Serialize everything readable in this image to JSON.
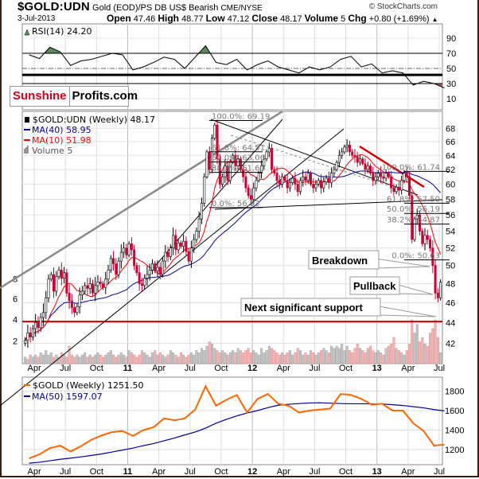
{
  "header": {
    "symbol": "$GOLD:UDN",
    "description": "Gold (EOD)/PS DB US$ Bearish",
    "exchange": "CME/NYSE",
    "copyright": "© StockCharts.com",
    "date": "3-Jul-2013",
    "open_label": "Open",
    "open": "47.46",
    "high_label": "High",
    "high": "48.77",
    "low_label": "Low",
    "low": "47.12",
    "close_label": "Close",
    "close": "48.17",
    "volume_label": "Volume",
    "volume": "5",
    "chg_label": "Chg",
    "chg": "+0.80 (+1.69%)",
    "chg_icon": "triangle-up-icon"
  },
  "logo": {
    "part1": "Sunshine",
    "part2": "Profits.com"
  },
  "colors": {
    "up": "#000000",
    "down": "#cc0033",
    "ma10": "#ff0000",
    "ma40": "#000099",
    "gold": "#ff6600",
    "ma50": "#000099",
    "support": "#cc0000",
    "rsi_overbought": "#5a8a5a",
    "rsi_oversold": "#b06060"
  },
  "chart_data": [
    {
      "type": "line",
      "panel": "rsi",
      "legend": "RSI(14) 24.20",
      "y_ticks": [
        90,
        70,
        50,
        30,
        10
      ],
      "ylim": [
        -4,
        106
      ],
      "reference_lines": [
        70,
        50,
        30,
        41.5
      ],
      "x_months_from": "2010-03",
      "values": [
        68,
        63,
        78,
        72,
        54,
        60,
        62,
        66,
        70,
        68,
        48,
        52,
        58,
        65,
        62,
        50,
        65,
        80,
        58,
        55,
        62,
        48,
        55,
        60,
        52,
        48,
        44,
        52,
        48,
        52,
        62,
        66,
        52,
        56,
        44,
        47,
        44,
        28,
        33,
        30,
        24.2
      ]
    },
    {
      "type": "candlestick",
      "panel": "price",
      "scale": "log",
      "legend": {
        "price": "$GOLD:UDN (Weekly) 48.17",
        "ma40": "MA(40) 58.95",
        "ma10": "MA(10) 51.98",
        "volume": "Volume 5"
      },
      "y_ticks": [
        68,
        66,
        64,
        62,
        60,
        58,
        56,
        54,
        52,
        50,
        48,
        46,
        44,
        42
      ],
      "left_ticks": [
        "8",
        "6",
        "4",
        "2"
      ],
      "ylim": [
        41,
        70
      ],
      "x_months_from": "2010-03",
      "weeks_per_month": 4,
      "closes": [
        42.3,
        43.0,
        42.6,
        43.4,
        44.0,
        43.5,
        44.5,
        45.0,
        46.5,
        48.5,
        49.0,
        47.2,
        48.8,
        49.5,
        48.6,
        49.2,
        47.0,
        46.2,
        45.5,
        45.0,
        45.6,
        46.8,
        47.2,
        47.8,
        47.5,
        48.0,
        47.0,
        47.8,
        48.2,
        48.0,
        47.6,
        48.5,
        49.5,
        50.8,
        50.2,
        49.0,
        50.5,
        51.5,
        52.0,
        51.2,
        52.5,
        51.8,
        50.0,
        49.2,
        48.0,
        47.8,
        48.6,
        49.0,
        49.5,
        50.2,
        49.4,
        49.8,
        49.0,
        50.5,
        51.5,
        51.0,
        52.0,
        53.5,
        51.8,
        52.6,
        52.2,
        52.8,
        51.6,
        50.5,
        52.0,
        53.0,
        54.0,
        55.5,
        57.5,
        61.0,
        64.5,
        62.0,
        66.5,
        68.5,
        63.5,
        60.0,
        61.0,
        62.5,
        60.5,
        63.0,
        64.0,
        62.5,
        63.5,
        62.0,
        61.0,
        59.5,
        58.5,
        58.0,
        59.5,
        60.5,
        61.5,
        62.5,
        63.5,
        64.5,
        65.0,
        62.0,
        61.5,
        60.5,
        60.0,
        61.0,
        60.5,
        59.5,
        60.2,
        60.8,
        60.0,
        59.0,
        60.5,
        61.0,
        60.5,
        61.5,
        60.0,
        59.5,
        60.0,
        60.5,
        59.5,
        60.3,
        60.8,
        60.2,
        61.5,
        62.0,
        63.0,
        64.0,
        64.5,
        65.2,
        65.5,
        64.5,
        64.0,
        63.8,
        63.0,
        63.5,
        62.8,
        62.0,
        62.5,
        61.5,
        60.5,
        61.0,
        61.5,
        61.0,
        60.8,
        61.5,
        61.0,
        59.5,
        59.0,
        59.6,
        59.2,
        60.5,
        61.5,
        61.0,
        58.5,
        53.0,
        55.5,
        56.0,
        54.0,
        52.5,
        53.5,
        53.0,
        52.0,
        50.0,
        47.0,
        46.5,
        48.17
      ],
      "volume": [
        3,
        2,
        4,
        3,
        4,
        3,
        5,
        4,
        6,
        4,
        5,
        3,
        4,
        3,
        5,
        4,
        3,
        8,
        4,
        3,
        4,
        3,
        4,
        5,
        3,
        4,
        3,
        4,
        5,
        4,
        3,
        4,
        5,
        6,
        4,
        3,
        4,
        5,
        4,
        3,
        6,
        5,
        4,
        3,
        4,
        6,
        5,
        4,
        3,
        5,
        6,
        4,
        5,
        4,
        3,
        4,
        6,
        5,
        4,
        3,
        5,
        4,
        3,
        4,
        5,
        4,
        6,
        5,
        7,
        6,
        8,
        10,
        9,
        7,
        6,
        5,
        6,
        5,
        4,
        5,
        6,
        5,
        7,
        6,
        5,
        6,
        7,
        5,
        6,
        5,
        4,
        7,
        5,
        6,
        8,
        7,
        6,
        5,
        4,
        5,
        4,
        5,
        6,
        4,
        5,
        7,
        6,
        4,
        5,
        4,
        6,
        5,
        4,
        5,
        6,
        7,
        6,
        5,
        8,
        7,
        8,
        7,
        9,
        6,
        8,
        6,
        5,
        7,
        9,
        7,
        6,
        5,
        7,
        8,
        6,
        5,
        6,
        5,
        4,
        7,
        8,
        9,
        12,
        7,
        6,
        5,
        4,
        6,
        9,
        20,
        14,
        18,
        10,
        12,
        9,
        8,
        14,
        16,
        20,
        12,
        5
      ],
      "support_level": 44.1,
      "fibonacci": [
        {
          "levels": [
            69.19,
            64.51,
            63.06,
            61.61,
            56.93
          ],
          "labels": [
            "100.0%: 69.19",
            "61.8%: 64.51",
            "50.0%: 63.06",
            "38.2%: 61.61",
            "0.0%: 56.93"
          ]
        },
        {
          "levels": [
            61.74,
            57.5,
            56.19,
            54.87,
            50.63
          ],
          "labels": [
            "100.0%: 61.74",
            "61.8%: 57.50",
            "50.0%: 56.19",
            "38.2%: 54.87",
            "0.0%: 50.63"
          ]
        }
      ],
      "annotations": {
        "breakdown": "Breakdown",
        "pullback": "Pullback",
        "support": "Next significant support"
      }
    },
    {
      "type": "line",
      "panel": "gold",
      "legend": {
        "gold": "$GOLD (Weekly) 1251.50",
        "ma50": "MA(50) 1597.07"
      },
      "y_ticks": [
        1800,
        1600,
        1400,
        1200
      ],
      "ylim": [
        1053,
        1935
      ],
      "x_months_from": "2010-03",
      "gold": [
        1110,
        1150,
        1215,
        1240,
        1180,
        1235,
        1300,
        1345,
        1380,
        1390,
        1340,
        1400,
        1430,
        1520,
        1500,
        1520,
        1610,
        1850,
        1650,
        1710,
        1760,
        1580,
        1720,
        1770,
        1670,
        1650,
        1580,
        1600,
        1610,
        1620,
        1770,
        1760,
        1720,
        1660,
        1670,
        1600,
        1600,
        1470,
        1390,
        1240,
        1251.5
      ],
      "ma50": [
        1060,
        1070,
        1085,
        1100,
        1112,
        1125,
        1140,
        1155,
        1175,
        1195,
        1215,
        1240,
        1262,
        1290,
        1318,
        1350,
        1380,
        1420,
        1470,
        1510,
        1545,
        1575,
        1600,
        1630,
        1655,
        1665,
        1672,
        1678,
        1680,
        1676,
        1672,
        1670,
        1670,
        1668,
        1668,
        1660,
        1652,
        1640,
        1628,
        1610,
        1597.07
      ]
    }
  ],
  "x_axis": {
    "labels": [
      {
        "text": "Apr",
        "m": 1
      },
      {
        "text": "Jul",
        "m": 4
      },
      {
        "text": "Oct",
        "m": 7
      },
      {
        "text": "11",
        "m": 10,
        "bold": true
      },
      {
        "text": "Apr",
        "m": 13
      },
      {
        "text": "Jul",
        "m": 16
      },
      {
        "text": "Oct",
        "m": 19
      },
      {
        "text": "12",
        "m": 22,
        "bold": true
      },
      {
        "text": "Apr",
        "m": 25
      },
      {
        "text": "Jul",
        "m": 28
      },
      {
        "text": "Oct",
        "m": 31
      },
      {
        "text": "13",
        "m": 34,
        "bold": true
      },
      {
        "text": "Apr",
        "m": 37
      },
      {
        "text": "Jul",
        "m": 40
      }
    ]
  }
}
